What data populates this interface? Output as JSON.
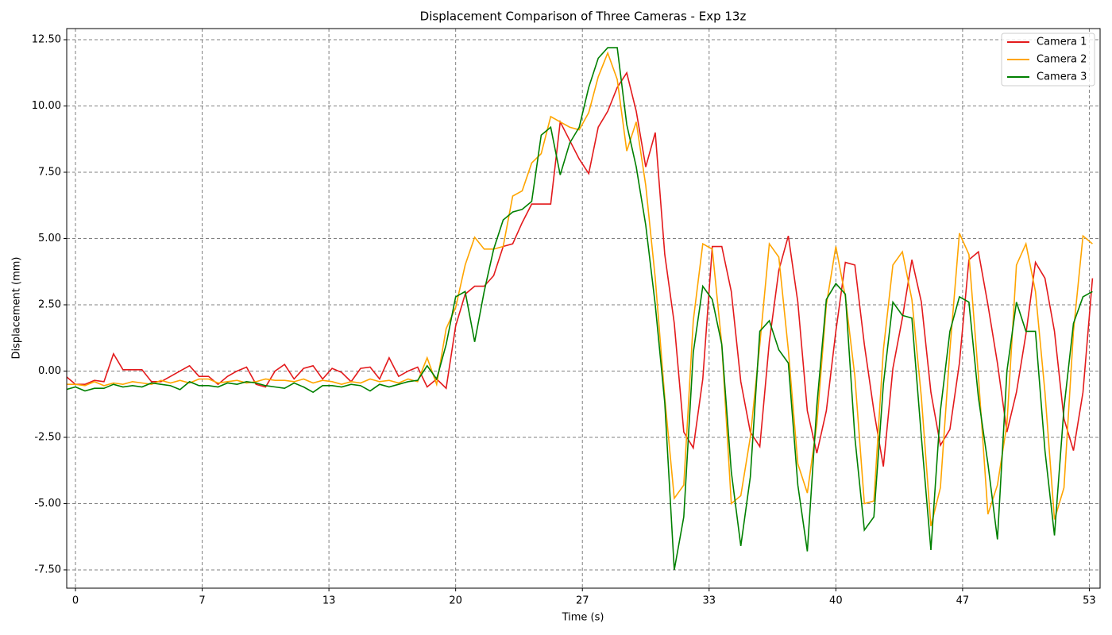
{
  "chart_data": {
    "type": "line",
    "title": "Displacement Comparison of Three Cameras - Exp 13z",
    "x_label": "Time (s)",
    "y_label": "Displacement (mm)",
    "x": [
      -0.5,
      0,
      0.5,
      1,
      1.5,
      2,
      2.5,
      3,
      3.5,
      4,
      4.5,
      5,
      5.5,
      6,
      6.5,
      7,
      7.5,
      8,
      8.5,
      9,
      9.5,
      10,
      10.5,
      11,
      11.5,
      12,
      12.5,
      13,
      13.5,
      14,
      14.5,
      15,
      15.5,
      16,
      16.5,
      17,
      17.5,
      18,
      18.5,
      19,
      19.5,
      20,
      20.5,
      21,
      21.5,
      22,
      22.5,
      23,
      23.5,
      24,
      24.5,
      25,
      25.5,
      26,
      26.5,
      27,
      27.5,
      28,
      28.5,
      29,
      29.5,
      30,
      30.5,
      31,
      31.5,
      32,
      32.5,
      33,
      33.5,
      34,
      34.5,
      35,
      35.5,
      36,
      36.5,
      37,
      37.5,
      38,
      38.5,
      39,
      39.5,
      40,
      40.5,
      41,
      41.5,
      42,
      42.5,
      43,
      43.5,
      44,
      44.5,
      45,
      45.5,
      46,
      46.5,
      47,
      47.5,
      48,
      48.5,
      49,
      49.5,
      50,
      50.5,
      51,
      51.5,
      52,
      52.5,
      53,
      53.5
    ],
    "series": [
      {
        "name": "Camera 1",
        "color": "#e31a1c",
        "values": [
          -0.2,
          -0.5,
          -0.5,
          -0.35,
          -0.4,
          0.65,
          0.05,
          0.05,
          0.05,
          -0.4,
          -0.4,
          -0.2,
          0.0,
          0.2,
          -0.2,
          -0.2,
          -0.5,
          -0.2,
          0.0,
          0.15,
          -0.5,
          -0.6,
          0.0,
          0.25,
          -0.3,
          0.1,
          0.2,
          -0.3,
          0.1,
          -0.05,
          -0.4,
          0.1,
          0.15,
          -0.3,
          0.5,
          -0.2,
          0.0,
          0.15,
          -0.6,
          -0.3,
          -0.65,
          1.7,
          2.9,
          3.2,
          3.2,
          3.6,
          4.7,
          4.8,
          5.6,
          6.3,
          6.3,
          6.3,
          9.4,
          8.7,
          8.0,
          7.45,
          9.2,
          9.8,
          10.7,
          11.25,
          9.8,
          7.7,
          9.0,
          4.4,
          1.8,
          -2.3,
          -2.9,
          -0.3,
          4.7,
          4.7,
          3.0,
          -0.4,
          -2.3,
          -2.85,
          1.1,
          3.8,
          5.1,
          2.6,
          -1.5,
          -3.1,
          -1.5,
          1.5,
          4.1,
          4.0,
          1.0,
          -1.5,
          -3.6,
          0.1,
          2.0,
          4.2,
          2.6,
          -0.8,
          -2.8,
          -2.2,
          0.3,
          4.2,
          4.5,
          2.5,
          0.3,
          -2.3,
          -0.8,
          1.4,
          4.1,
          3.5,
          1.5,
          -1.8,
          -3.0,
          -0.8,
          3.5
        ]
      },
      {
        "name": "Camera 2",
        "color": "#ffa500",
        "values": [
          -0.5,
          -0.5,
          -0.55,
          -0.4,
          -0.55,
          -0.45,
          -0.5,
          -0.4,
          -0.45,
          -0.5,
          -0.35,
          -0.45,
          -0.35,
          -0.45,
          -0.3,
          -0.3,
          -0.45,
          -0.4,
          -0.35,
          -0.45,
          -0.4,
          -0.3,
          -0.35,
          -0.35,
          -0.4,
          -0.3,
          -0.45,
          -0.35,
          -0.4,
          -0.5,
          -0.4,
          -0.45,
          -0.3,
          -0.4,
          -0.35,
          -0.45,
          -0.3,
          -0.4,
          0.5,
          -0.5,
          1.6,
          2.4,
          4.0,
          5.05,
          4.6,
          4.6,
          4.7,
          6.6,
          6.8,
          7.85,
          8.2,
          9.6,
          9.4,
          9.2,
          9.1,
          9.75,
          11.1,
          12.0,
          11.0,
          8.3,
          9.4,
          7.0,
          3.5,
          -1.0,
          -4.8,
          -4.3,
          1.9,
          4.8,
          4.6,
          1.0,
          -5.0,
          -4.7,
          -2.5,
          1.0,
          4.8,
          4.3,
          0.8,
          -3.5,
          -4.6,
          -2.0,
          2.5,
          4.7,
          2.8,
          -0.2,
          -5.0,
          -4.9,
          0.8,
          4.0,
          4.5,
          2.7,
          -1.0,
          -5.85,
          -4.4,
          0.8,
          5.2,
          4.4,
          -0.2,
          -5.4,
          -4.3,
          -2.0,
          4.0,
          4.8,
          3.0,
          -0.8,
          -5.6,
          -4.4,
          1.5,
          5.1,
          4.8
        ]
      },
      {
        "name": "Camera 3",
        "color": "#008000",
        "values": [
          -0.7,
          -0.6,
          -0.75,
          -0.65,
          -0.65,
          -0.5,
          -0.6,
          -0.55,
          -0.6,
          -0.45,
          -0.5,
          -0.55,
          -0.7,
          -0.4,
          -0.55,
          -0.55,
          -0.6,
          -0.45,
          -0.5,
          -0.4,
          -0.45,
          -0.55,
          -0.6,
          -0.65,
          -0.45,
          -0.6,
          -0.8,
          -0.55,
          -0.55,
          -0.6,
          -0.5,
          -0.55,
          -0.75,
          -0.5,
          -0.6,
          -0.5,
          -0.4,
          -0.35,
          0.2,
          -0.3,
          1.0,
          2.8,
          3.0,
          1.1,
          3.0,
          4.6,
          5.7,
          6.0,
          6.1,
          6.4,
          8.9,
          9.2,
          7.4,
          8.6,
          9.2,
          10.7,
          11.8,
          12.2,
          12.2,
          9.3,
          7.7,
          5.5,
          2.5,
          -1.2,
          -7.5,
          -5.5,
          0.7,
          3.2,
          2.7,
          1.0,
          -3.8,
          -6.6,
          -4.0,
          1.5,
          1.9,
          0.8,
          0.3,
          -4.3,
          -6.8,
          -1.3,
          2.7,
          3.3,
          2.9,
          -2.5,
          -6.0,
          -5.5,
          -0.5,
          2.6,
          2.1,
          2.0,
          -2.5,
          -6.75,
          -1.5,
          1.5,
          2.8,
          2.6,
          -1.0,
          -3.5,
          -6.35,
          0.0,
          2.6,
          1.5,
          1.5,
          -3.0,
          -6.2,
          -1.4,
          1.8,
          2.8,
          3.0
        ]
      }
    ],
    "xlim": [
      -0.46,
      53.9
    ],
    "ylim": [
      -8.19,
      12.92
    ],
    "xticks": [
      0,
      {
        "value": 6.6667,
        "label": "7"
      },
      {
        "value": 13.3333,
        "label": "13"
      },
      20,
      {
        "value": 26.6667,
        "label": "27"
      },
      {
        "value": 33.3333,
        "label": "33"
      },
      40,
      {
        "value": 46.6667,
        "label": "47"
      },
      {
        "value": 53.3333,
        "label": "53"
      }
    ],
    "yticks": [
      {
        "value": -7.5,
        "label": "-7.50"
      },
      {
        "value": -5,
        "label": "-5.00"
      },
      {
        "value": -2.5,
        "label": "-2.50"
      },
      {
        "value": 0,
        "label": "0.00"
      },
      {
        "value": 2.5,
        "label": "2.50"
      },
      {
        "value": 5,
        "label": "5.00"
      },
      {
        "value": 7.5,
        "label": "7.50"
      },
      {
        "value": 10,
        "label": "10.00"
      },
      {
        "value": 12.5,
        "label": "12.50"
      }
    ],
    "grid": true,
    "legend": "upper right"
  }
}
